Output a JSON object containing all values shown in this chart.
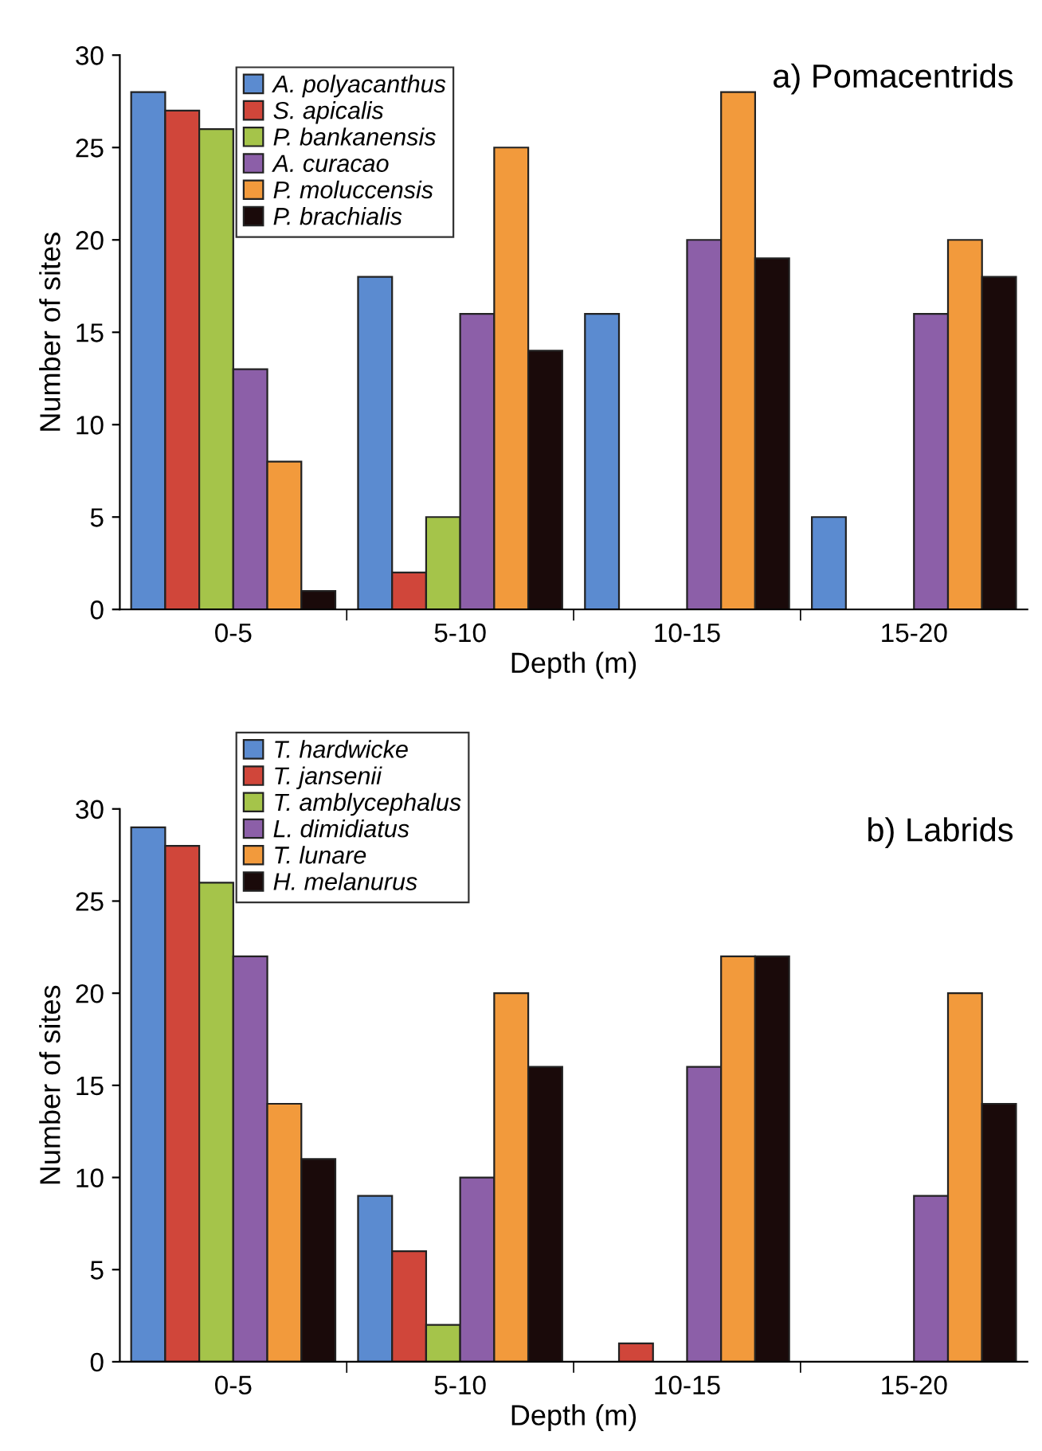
{
  "chart_data": [
    {
      "type": "bar",
      "title": "a) Pomacentrids",
      "xlabel": "Depth (m)",
      "ylabel": "Number of sites",
      "categories": [
        "0-5",
        "5-10",
        "10-15",
        "15-20"
      ],
      "ylim": [
        0,
        30
      ],
      "yticks": [
        0,
        5,
        10,
        15,
        20,
        25,
        30
      ],
      "legend": "top left",
      "grid": false,
      "series": [
        {
          "name": "A. polyacanthus",
          "color": "#5b8bd0",
          "values": [
            28,
            18,
            16,
            5
          ]
        },
        {
          "name": "S. apicalis",
          "color": "#d0463a",
          "values": [
            27,
            2,
            0,
            0
          ]
        },
        {
          "name": "P. bankanensis",
          "color": "#a5c44a",
          "values": [
            26,
            5,
            0,
            0
          ]
        },
        {
          "name": "A. curacao",
          "color": "#8c5fa8",
          "values": [
            13,
            16,
            20,
            16
          ]
        },
        {
          "name": "P. moluccensis",
          "color": "#f29a3c",
          "values": [
            8,
            25,
            28,
            20
          ]
        },
        {
          "name": "P. brachialis",
          "color": "#1a0a0a",
          "values": [
            1,
            14,
            19,
            18
          ]
        }
      ]
    },
    {
      "type": "bar",
      "title": "b) Labrids",
      "xlabel": "Depth (m)",
      "ylabel": "Number of sites",
      "categories": [
        "0-5",
        "5-10",
        "10-15",
        "15-20"
      ],
      "ylim": [
        0,
        30
      ],
      "yticks": [
        0,
        5,
        10,
        15,
        20,
        25,
        30
      ],
      "legend": "top left",
      "grid": false,
      "series": [
        {
          "name": "T. hardwicke",
          "color": "#5b8bd0",
          "values": [
            29,
            9,
            0,
            0
          ]
        },
        {
          "name": "T. jansenii",
          "color": "#d0463a",
          "values": [
            28,
            6,
            1,
            0
          ]
        },
        {
          "name": "T. amblycephalus",
          "color": "#a5c44a",
          "values": [
            26,
            2,
            0,
            0
          ]
        },
        {
          "name": "L. dimidiatus",
          "color": "#8c5fa8",
          "values": [
            22,
            10,
            16,
            9
          ]
        },
        {
          "name": "T. lunare",
          "color": "#f29a3c",
          "values": [
            14,
            20,
            22,
            20
          ]
        },
        {
          "name": "H. melanurus",
          "color": "#1a0a0a",
          "values": [
            11,
            16,
            22,
            14
          ]
        }
      ]
    }
  ]
}
